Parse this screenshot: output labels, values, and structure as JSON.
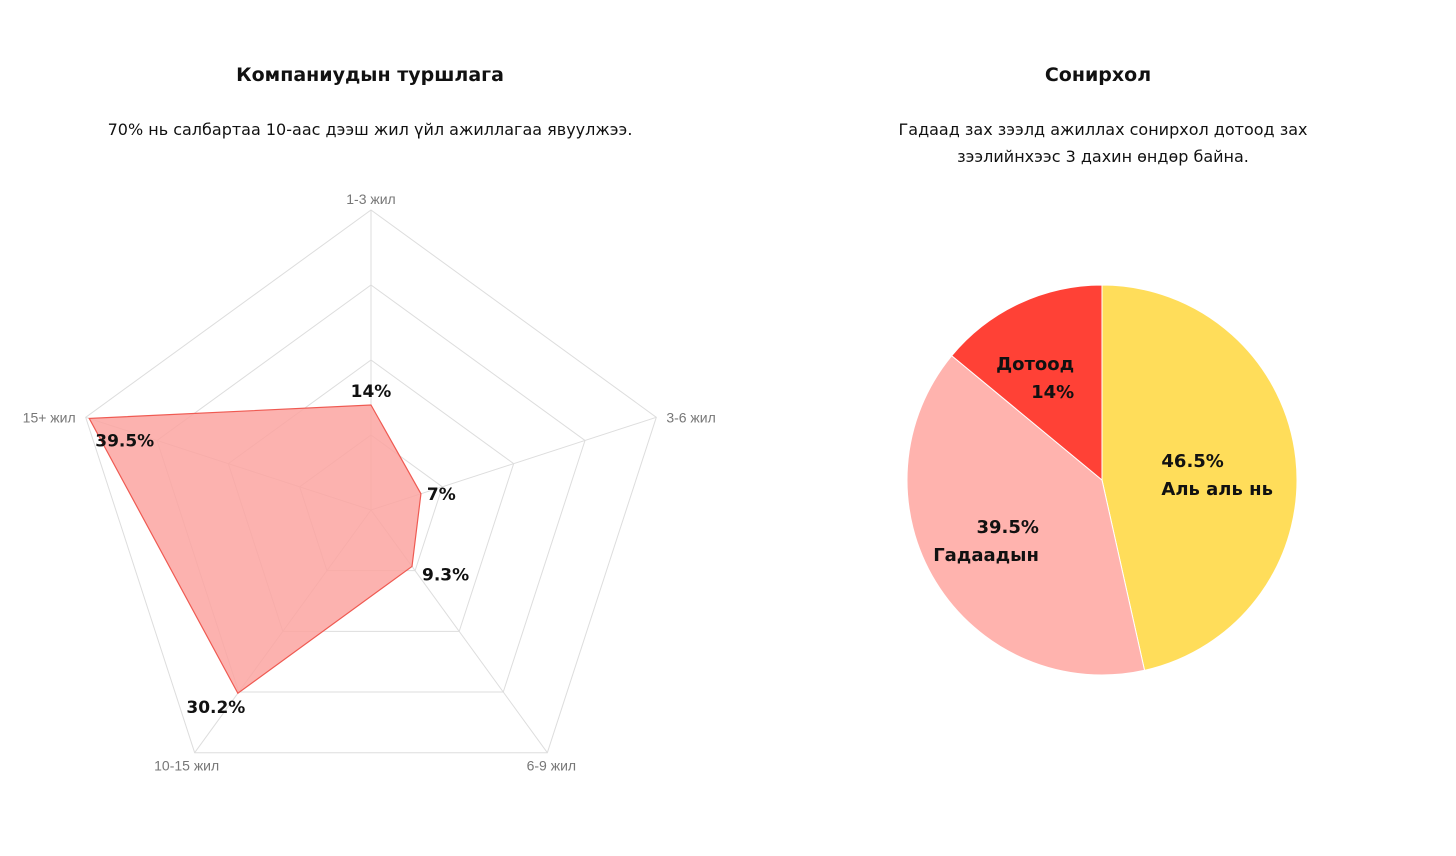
{
  "chart_data": [
    {
      "type": "radar",
      "title": "Компаниудын туршлага",
      "subtitle": "70% нь салбартаа 10-аас дээш жил үйл ажиллагаа явуулжээ.",
      "categories": [
        "1-3 жил",
        "3-6 жил",
        "6-9 жил",
        "10-15 жил",
        "15+ жил"
      ],
      "values": [
        14,
        7,
        9.3,
        30.2,
        39.5
      ],
      "value_labels": [
        "14%",
        "7%",
        "9.3%",
        "30.2%",
        "39.5%"
      ],
      "range": [
        0,
        40
      ],
      "grid_levels": [
        10,
        20,
        30,
        40
      ],
      "grid": true,
      "legend": "none",
      "colors": {
        "fill": "#fca5a1",
        "stroke": "#ef5a52",
        "grid": "#dddddd"
      }
    },
    {
      "type": "pie",
      "title": "Сонирхол",
      "subtitle": "Гадаад зах зээлд ажиллах сонирхол дотоод зах зээлийнхээс 3 дахин өндөр байна.",
      "slices": [
        {
          "name": "Аль аль нь",
          "value": 46.5,
          "label": "46.5%",
          "color": "#ffdd5a"
        },
        {
          "name": "Гадаадын",
          "value": 39.5,
          "label": "39.5%",
          "color": "#ffb3ae"
        },
        {
          "name": "Дотоод",
          "value": 14,
          "label": "14%",
          "color": "#ff4136"
        }
      ],
      "legend": "none"
    }
  ]
}
